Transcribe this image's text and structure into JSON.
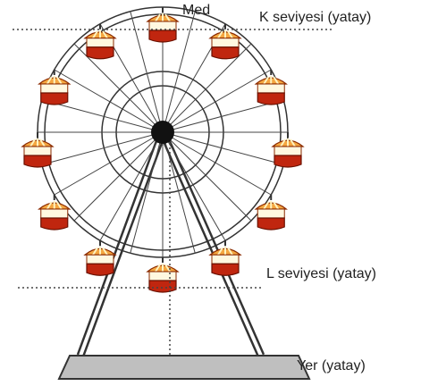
{
  "labels": {
    "top": "Med",
    "k_level": "K seviyesi (yatay)",
    "l_level": "L seviyesi (yatay)",
    "ground": "Yer (yatay)"
  }
}
